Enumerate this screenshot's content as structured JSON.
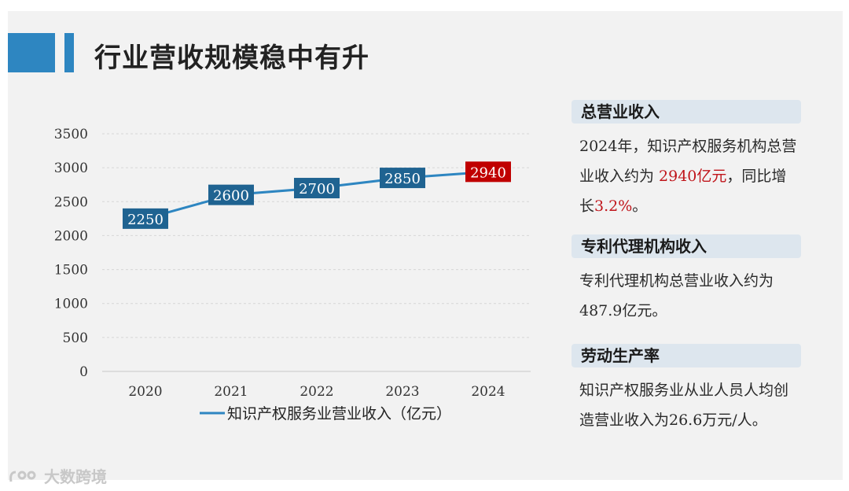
{
  "title": "行业营收规模稳中有升",
  "chart_data": {
    "type": "line",
    "x": [
      "2020",
      "2021",
      "2022",
      "2023",
      "2024"
    ],
    "series": [
      {
        "name": "知识产权服务业营业收入（亿元）",
        "values": [
          2250,
          2600,
          2700,
          2850,
          2940
        ]
      }
    ],
    "ylim": [
      0,
      3500
    ],
    "yticks": [
      "0",
      "500",
      "1000",
      "1500",
      "2000",
      "2500",
      "3000",
      "3500"
    ],
    "data_labels": [
      "2250",
      "2600",
      "2700",
      "2850",
      "2940"
    ],
    "grid": true,
    "legend_position": "bottom",
    "highlight_color": "#c00000",
    "label_color": "#1f6391",
    "line_color": "#2e86c1"
  },
  "sections": [
    {
      "title": "总营业收入",
      "parts": [
        {
          "text": "2024年，知识产权服务机构总营业收入约为 ",
          "highlight": false
        },
        {
          "text": "2940亿元",
          "highlight": true
        },
        {
          "text": "，同比增长",
          "highlight": false
        },
        {
          "text": "3.2%",
          "highlight": true
        },
        {
          "text": "。",
          "highlight": false
        }
      ]
    },
    {
      "title": "专利代理机构收入",
      "parts": [
        {
          "text": "专利代理机构总营业收入约为487.9亿元。",
          "highlight": false
        }
      ]
    },
    {
      "title": "劳动生产率",
      "parts": [
        {
          "text": "知识产权服务业从业人员人均创造营业收入为26.6万元/人。",
          "highlight": false
        }
      ]
    }
  ],
  "watermark": "大数跨境"
}
